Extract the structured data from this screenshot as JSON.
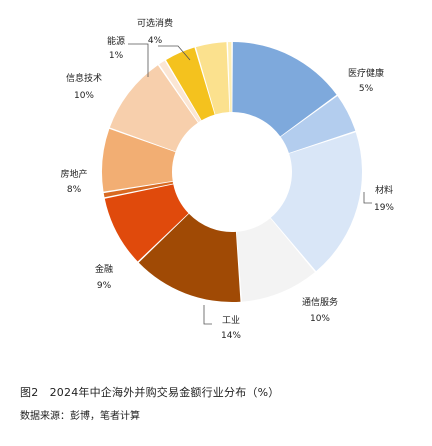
{
  "chart_data": {
    "type": "pie",
    "style": "donut",
    "slices": [
      {
        "label": "医疗健康",
        "value": 15,
        "value_label": "",
        "color": "#7ea9dc"
      },
      {
        "label": "",
        "value": 5,
        "value_label": "5%",
        "color": "#b3cdee"
      },
      {
        "label": "材料",
        "value": 19,
        "value_label": "19%",
        "color": "#d9e6f7"
      },
      {
        "label": "通信服务",
        "value": 10,
        "value_label": "10%",
        "color": "#f3f3f3"
      },
      {
        "label": "工业",
        "value": 14,
        "value_label": "14%",
        "color": "#a04a05"
      },
      {
        "label": "金融",
        "value": 9,
        "value_label": "9%",
        "color": "#e04a0c"
      },
      {
        "label": "",
        "value": 0.7,
        "value_label": "",
        "color": "#d86a22"
      },
      {
        "label": "房地产",
        "value": 8,
        "value_label": "8%",
        "color": "#f2ae73"
      },
      {
        "label": "信息技术",
        "value": 10,
        "value_label": "10%",
        "color": "#f7cfac"
      },
      {
        "label": "能源",
        "value": 1,
        "value_label": "1%",
        "color": "#fbe6d4"
      },
      {
        "label": "",
        "value": 4,
        "value_label": "",
        "color": "#f4c21e"
      },
      {
        "label": "可选消费",
        "value": 4,
        "value_label": "4%",
        "color": "#fbe18e"
      },
      {
        "label": "",
        "value": 0.6,
        "value_label": "",
        "color": "#fdeeb6"
      }
    ]
  },
  "caption": "图2　2024年中企海外并购交易金额行业分布（%）",
  "source": "数据来源：彭博，笔者计算"
}
